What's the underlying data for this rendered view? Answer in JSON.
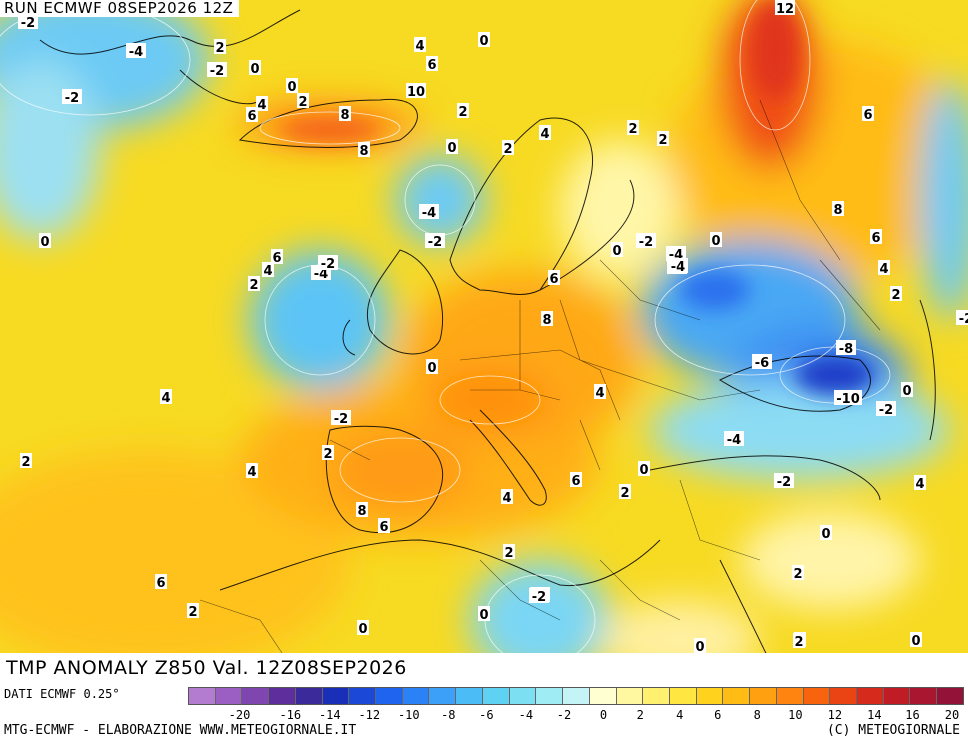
{
  "header": {
    "run_text": "RUN ECMWF 08SEP2026 12Z"
  },
  "title": "TMP ANOMALY Z850 Val. 12Z08SEP2026",
  "footer": {
    "source": "DATI ECMWF 0.25°",
    "credit_left": "MTG-ECMWF - ELABORAZIONE WWW.METEOGIORNALE.IT",
    "credit_right": "(C) METEOGIORNALE"
  },
  "legend": {
    "colors": [
      "#b47cd0",
      "#9b5fc4",
      "#8046b0",
      "#5e2f9c",
      "#3a2a9a",
      "#1a2fb8",
      "#1c48d8",
      "#1e64ee",
      "#2a82f6",
      "#3ca0f8",
      "#4cbcf6",
      "#5fd2f4",
      "#7ce0f2",
      "#a0ecf4",
      "#c4f4f6",
      "#ffffd2",
      "#fff8a0",
      "#fff070",
      "#ffe640",
      "#ffd21e",
      "#ffbc14",
      "#ffa010",
      "#ff8410",
      "#f8640e",
      "#ea4414",
      "#d62a1c",
      "#c01c26",
      "#a81630",
      "#921238"
    ],
    "ticks": [
      "-20",
      "-16",
      "-14",
      "-12",
      "-10",
      "-8",
      "-6",
      "-4",
      "-2",
      "0",
      "2",
      "4",
      "6",
      "8",
      "10",
      "12",
      "14",
      "16",
      "20"
    ]
  },
  "palette": {
    "ocean_base": "#f6d81e",
    "cold": "#38b6f4",
    "very_cold": "#1e64ee",
    "warm": "#ffa010",
    "hot": "#ea4414"
  },
  "map_labels": [
    "-2",
    "-4",
    "-2",
    "0",
    "2",
    "-2",
    "0",
    "4",
    "6",
    "10",
    "8",
    "6",
    "4",
    "2",
    "2",
    "8",
    "0",
    "2",
    "4",
    "2",
    "2",
    "0",
    "12",
    "6",
    "8",
    "6",
    "4",
    "2",
    "-4",
    "0",
    "-2",
    "-4",
    "-2",
    "6",
    "2",
    "4",
    "-4",
    "-2",
    "0",
    "-2",
    "-4",
    "-6",
    "0",
    "8",
    "6",
    "-6",
    "-8",
    "-10",
    "-2",
    "0",
    "-2",
    "4",
    "0",
    "4",
    "-4",
    "-2",
    "2",
    "2",
    "4",
    "8",
    "6",
    "4",
    "6",
    "2",
    "4",
    "0",
    "6",
    "2",
    "0",
    "-2",
    "0",
    "2",
    "2",
    "0",
    "2",
    "0",
    "-2",
    "0",
    "2"
  ]
}
